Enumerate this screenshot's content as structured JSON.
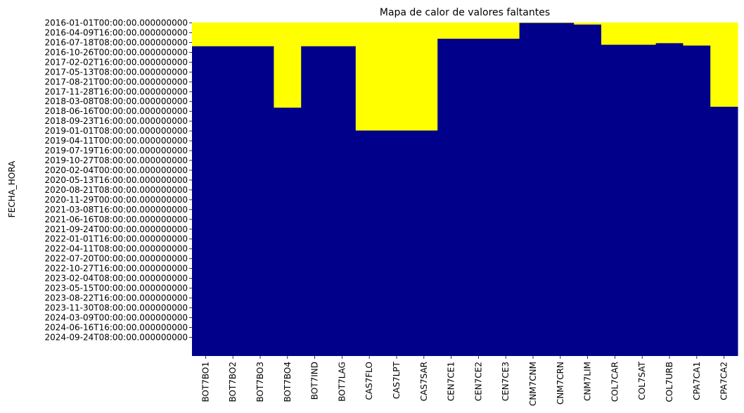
{
  "chart_data": {
    "type": "heatmap",
    "title": "Mapa de calor de valores faltantes",
    "ylabel": "FECHA_HORA",
    "xlabel": "",
    "colors": {
      "missing": "#ffff00",
      "present": "#00008b"
    },
    "colorbar": false,
    "columns": [
      "BOT7BO1",
      "BOT7BO2",
      "BOT7BO3",
      "BOT7BO4",
      "BOT7IND",
      "BOT7LAG",
      "CAS7FLO",
      "CAS7LPT",
      "CAS7SAR",
      "CEN7CE1",
      "CEN7CE2",
      "CEN7CE3",
      "CNM7CNM",
      "CNM7CRN",
      "CNM7LIM",
      "COL7CAR",
      "COL7SAT",
      "COL7URB",
      "CPA7CA1",
      "CPA7CA2"
    ],
    "row_labels": [
      "2016-01-01T00:00:00.000000000",
      "2016-04-09T16:00:00.000000000",
      "2016-07-18T08:00:00.000000000",
      "2016-10-26T00:00:00.000000000",
      "2017-02-02T16:00:00.000000000",
      "2017-05-13T08:00:00.000000000",
      "2017-08-21T00:00:00.000000000",
      "2017-11-28T16:00:00.000000000",
      "2018-03-08T08:00:00.000000000",
      "2018-06-16T00:00:00.000000000",
      "2018-09-23T16:00:00.000000000",
      "2019-01-01T08:00:00.000000000",
      "2019-04-11T00:00:00.000000000",
      "2019-07-19T16:00:00.000000000",
      "2019-10-27T08:00:00.000000000",
      "2020-02-04T00:00:00.000000000",
      "2020-05-13T16:00:00.000000000",
      "2020-08-21T08:00:00.000000000",
      "2020-11-29T00:00:00.000000000",
      "2021-03-08T16:00:00.000000000",
      "2021-06-16T08:00:00.000000000",
      "2021-09-24T00:00:00.000000000",
      "2022-01-01T16:00:00.000000000",
      "2022-04-11T08:00:00.000000000",
      "2022-07-20T00:00:00.000000000",
      "2022-10-27T16:00:00.000000000",
      "2023-02-04T08:00:00.000000000",
      "2023-05-15T00:00:00.000000000",
      "2023-08-22T16:00:00.000000000",
      "2023-11-30T08:00:00.000000000",
      "2024-03-09T00:00:00.000000000",
      "2024-06-16T16:00:00.000000000",
      "2024-09-24T08:00:00.000000000"
    ],
    "missing_until": [
      "2016-08-25",
      "2016-08-25",
      "2016-08-25",
      "2018-05-10",
      "2016-08-25",
      "2016-08-25",
      "2018-12-28",
      "2018-12-28",
      "2018-12-28",
      "2016-06-10",
      "2016-06-10",
      "2016-06-10",
      "2016-01-01",
      "2016-01-01",
      "2016-01-18",
      "2016-08-10",
      "2016-08-10",
      "2016-07-25",
      "2016-08-18",
      "2018-05-01"
    ]
  }
}
